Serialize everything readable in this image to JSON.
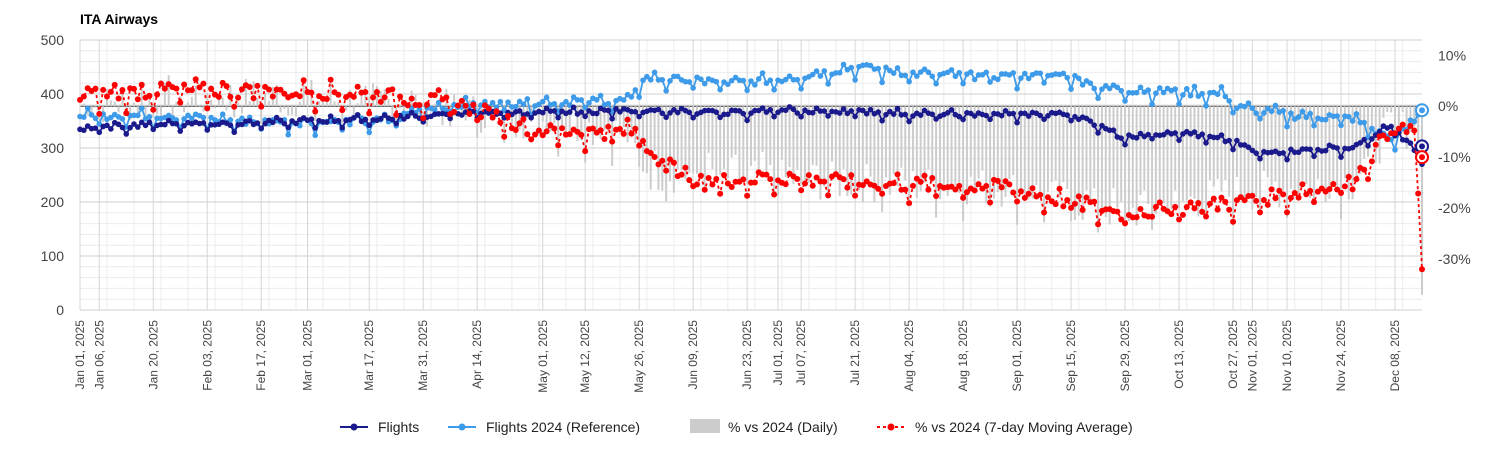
{
  "chart_data": {
    "type": "line",
    "title": "ITA Airways",
    "colors": {
      "flights": "#1a1a8c",
      "reference": "#3d9be9",
      "daily": "#cccccc",
      "moving_avg": "#ff0000"
    },
    "left_axis": {
      "min": 0,
      "max": 500,
      "ticks": [
        "0",
        "100",
        "200",
        "300",
        "400",
        "500"
      ]
    },
    "right_axis": {
      "min": -40,
      "max": 13,
      "ticks": [
        "10%",
        "0%",
        "-10%",
        "-20%",
        "-30%"
      ],
      "tick_values": [
        10,
        0,
        -10,
        -20,
        -30
      ]
    },
    "x_tick_labels": [
      "Jan 01, 2025",
      "Jan 06, 2025",
      "Jan 20, 2025",
      "Feb 03, 2025",
      "Feb 17, 2025",
      "Mar 01, 2025",
      "Mar 17, 2025",
      "Mar 31, 2025",
      "Apr 14, 2025",
      "May 01, 2025",
      "May 12, 2025",
      "May 26, 2025",
      "Jun 09, 2025",
      "Jun 23, 2025",
      "Jul 01, 2025",
      "Jul 07, 2025",
      "Jul 21, 2025",
      "Aug 04, 2025",
      "Aug 18, 2025",
      "Sep 01, 2025",
      "Sep 15, 2025",
      "Sep 29, 2025",
      "Oct 13, 2025",
      "Oct 27, 2025",
      "Nov 01, 2025",
      "Nov 10, 2025",
      "Nov 24, 2025",
      "Dec 08, 2025"
    ],
    "x_tick_days": [
      0,
      5,
      19,
      33,
      47,
      59,
      75,
      89,
      103,
      120,
      131,
      145,
      159,
      173,
      181,
      187,
      201,
      215,
      229,
      243,
      257,
      271,
      285,
      299,
      304,
      313,
      327,
      341
    ],
    "series": [
      {
        "name": "Flights",
        "axis": "left",
        "anchors": [
          [
            0,
            335
          ],
          [
            20,
            345
          ],
          [
            40,
            345
          ],
          [
            60,
            350
          ],
          [
            80,
            355
          ],
          [
            100,
            365
          ],
          [
            120,
            365
          ],
          [
            145,
            370
          ],
          [
            160,
            365
          ],
          [
            180,
            368
          ],
          [
            200,
            368
          ],
          [
            220,
            362
          ],
          [
            240,
            362
          ],
          [
            256,
            362
          ],
          [
            262,
            350
          ],
          [
            270,
            320
          ],
          [
            285,
            330
          ],
          [
            300,
            310
          ],
          [
            305,
            290
          ],
          [
            315,
            295
          ],
          [
            330,
            300
          ],
          [
            340,
            340
          ],
          [
            345,
            305
          ],
          [
            348,
            270
          ]
        ]
      },
      {
        "name": "Flights 2024 (Reference)",
        "axis": "left",
        "anchors": [
          [
            0,
            360
          ],
          [
            20,
            360
          ],
          [
            40,
            350
          ],
          [
            60,
            348
          ],
          [
            80,
            350
          ],
          [
            90,
            375
          ],
          [
            100,
            380
          ],
          [
            120,
            385
          ],
          [
            143,
            388
          ],
          [
            146,
            430
          ],
          [
            170,
            420
          ],
          [
            185,
            430
          ],
          [
            201,
            450
          ],
          [
            220,
            435
          ],
          [
            240,
            433
          ],
          [
            256,
            435
          ],
          [
            265,
            410
          ],
          [
            280,
            405
          ],
          [
            297,
            400
          ],
          [
            300,
            375
          ],
          [
            315,
            360
          ],
          [
            330,
            355
          ],
          [
            340,
            315
          ],
          [
            345,
            340
          ],
          [
            348,
            370
          ]
        ]
      },
      {
        "name": "% vs 2024 (Daily)",
        "axis": "right",
        "anchors": [
          [
            0,
            0
          ],
          [
            40,
            2
          ],
          [
            80,
            1
          ],
          [
            100,
            -1
          ],
          [
            140,
            -5
          ],
          [
            148,
            -13
          ],
          [
            200,
            -15
          ],
          [
            240,
            -16
          ],
          [
            270,
            -21
          ],
          [
            300,
            -17
          ],
          [
            330,
            -15
          ],
          [
            340,
            -4
          ],
          [
            347,
            -5
          ],
          [
            348,
            -37
          ]
        ]
      },
      {
        "name": "% vs 2024 (7-day Moving Average)",
        "axis": "right",
        "anchors": [
          [
            0,
            2
          ],
          [
            20,
            3
          ],
          [
            40,
            3
          ],
          [
            60,
            3
          ],
          [
            80,
            2
          ],
          [
            100,
            0
          ],
          [
            120,
            -5
          ],
          [
            145,
            -5
          ],
          [
            148,
            -9
          ],
          [
            160,
            -15
          ],
          [
            180,
            -14
          ],
          [
            200,
            -15
          ],
          [
            240,
            -16
          ],
          [
            270,
            -21
          ],
          [
            300,
            -19
          ],
          [
            330,
            -15
          ],
          [
            340,
            -4
          ],
          [
            346,
            -5
          ],
          [
            348,
            -32
          ]
        ]
      }
    ],
    "legend": [
      {
        "label": "Flights",
        "marker": "line-dot"
      },
      {
        "label": "Flights 2024 (Reference)",
        "marker": "line-dot"
      },
      {
        "label": "% vs 2024 (Daily)",
        "marker": "box"
      },
      {
        "label": "% vs 2024 (7-day Moving Average)",
        "marker": "dashed-dot"
      }
    ],
    "legend_position": "bottom",
    "grid": true,
    "x_domain": [
      0,
      348
    ]
  }
}
